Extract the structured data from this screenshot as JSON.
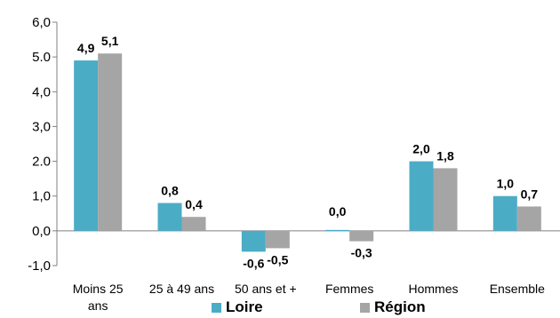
{
  "chart_data": {
    "type": "bar",
    "categories": [
      "Moins 25 ans",
      "25 à 49 ans",
      "50 ans et +",
      "Femmes",
      "Hommes",
      "Ensemble"
    ],
    "series": [
      {
        "name": "Loire",
        "values": [
          4.9,
          0.8,
          -0.6,
          0.0,
          2.0,
          1.0
        ],
        "labels": [
          "4,9",
          "0,8",
          "-0,6",
          "0,0",
          "2,0",
          "1,0"
        ],
        "color": "#4BACC6"
      },
      {
        "name": "Région",
        "values": [
          5.1,
          0.4,
          -0.5,
          -0.3,
          1.8,
          0.7
        ],
        "labels": [
          "5,1",
          "0,4",
          "-0,5",
          "-0,3",
          "1,8",
          "0,7"
        ],
        "color": "#A5A5A5"
      }
    ],
    "yticks": [
      "6,0",
      "5.0",
      "4,0",
      "3,0",
      "2.0",
      "1,0",
      "0,0",
      "-1,0"
    ],
    "ylim": [
      -1,
      6
    ],
    "grid": false,
    "legend_position": "bottom"
  }
}
